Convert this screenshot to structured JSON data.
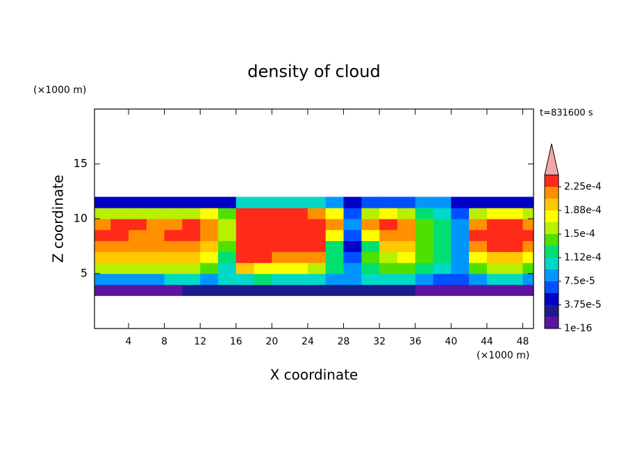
{
  "chart_data": {
    "type": "contour",
    "title": "density of cloud",
    "x_label": "X coordinate",
    "y_label": "Z coordinate",
    "x_unit": "(×1000 m)",
    "y_unit": "(×1000 m)",
    "annotation": "t=831600 s",
    "xlim": [
      0.2,
      49.2
    ],
    "ylim": [
      0,
      20
    ],
    "xticks": [
      4,
      8,
      12,
      16,
      20,
      24,
      28,
      32,
      36,
      40,
      44,
      48
    ],
    "yticks": [
      5,
      10,
      15
    ],
    "x": [
      1,
      3,
      5,
      7,
      9,
      11,
      13,
      15,
      17,
      19,
      21,
      23,
      25,
      27,
      29,
      31,
      33,
      35,
      37,
      39,
      41,
      43,
      45,
      47,
      49
    ],
    "y": [
      3.5,
      4.5,
      5.5,
      6.5,
      7.5,
      8.5,
      9.5,
      10.5,
      11.5
    ],
    "z": [
      [
        9.4e-06,
        9.4e-06,
        9.4e-06,
        9.4e-06,
        9.4e-06,
        2.8e-05,
        2.8e-05,
        2.8e-05,
        2.8e-05,
        2.8e-05,
        2.8e-05,
        2.8e-05,
        2.8e-05,
        2.8e-05,
        2.8e-05,
        2.8e-05,
        2.8e-05,
        2.8e-05,
        9.4e-06,
        9.4e-06,
        9.4e-06,
        9.4e-06,
        9.4e-06,
        9.4e-06,
        9.4e-06
      ],
      [
        8.4e-05,
        8.4e-05,
        8.4e-05,
        8.4e-05,
        0.000103,
        0.000103,
        8.4e-05,
        0.000103,
        0.000103,
        0.000122,
        0.000103,
        0.000103,
        0.000103,
        8.4e-05,
        8.4e-05,
        0.000103,
        0.000103,
        0.000103,
        8.4e-05,
        6.6e-05,
        6.6e-05,
        8.4e-05,
        0.000103,
        0.000103,
        8.4e-05
      ],
      [
        0.000159,
        0.000159,
        0.000159,
        0.000159,
        0.000159,
        0.000159,
        0.000141,
        0.000103,
        0.000197,
        0.000178,
        0.000178,
        0.000178,
        0.000159,
        0.000122,
        8.4e-05,
        0.000122,
        0.000141,
        0.000141,
        0.000122,
        0.000103,
        8.4e-05,
        0.000141,
        0.000159,
        0.000159,
        0.000141
      ],
      [
        0.000197,
        0.000197,
        0.000197,
        0.000197,
        0.000197,
        0.000197,
        0.000178,
        0.000122,
        0.000234,
        0.000234,
        0.000216,
        0.000216,
        0.000216,
        0.000122,
        6.6e-05,
        0.000141,
        0.000159,
        0.000178,
        0.000141,
        0.000122,
        8.4e-05,
        0.000178,
        0.000197,
        0.000197,
        0.000178
      ],
      [
        0.000216,
        0.000216,
        0.000216,
        0.000216,
        0.000216,
        0.000216,
        0.000197,
        0.000141,
        0.000234,
        0.000234,
        0.000234,
        0.000234,
        0.000234,
        0.000122,
        4.7e-05,
        0.000122,
        0.000197,
        0.000197,
        0.000141,
        0.000122,
        8.4e-05,
        0.000216,
        0.000234,
        0.000234,
        0.000216
      ],
      [
        0.000234,
        0.000234,
        0.000216,
        0.000216,
        0.000234,
        0.000234,
        0.000216,
        0.000159,
        0.000234,
        0.000234,
        0.000234,
        0.000234,
        0.000234,
        0.000178,
        6.6e-05,
        0.000178,
        0.000216,
        0.000216,
        0.000141,
        0.000122,
        8.4e-05,
        0.000234,
        0.000234,
        0.000234,
        0.000234
      ],
      [
        0.000216,
        0.000234,
        0.000234,
        0.000216,
        0.000216,
        0.000234,
        0.000216,
        0.000159,
        0.000234,
        0.000234,
        0.000234,
        0.000234,
        0.000234,
        0.000216,
        8.4e-05,
        0.000216,
        0.000234,
        0.000216,
        0.000141,
        0.000122,
        8.4e-05,
        0.000216,
        0.000234,
        0.000234,
        0.000216
      ],
      [
        0.000159,
        0.000159,
        0.000159,
        0.000159,
        0.000159,
        0.000159,
        0.000178,
        0.000141,
        0.000234,
        0.000234,
        0.000234,
        0.000234,
        0.000216,
        0.000178,
        6.6e-05,
        0.000159,
        0.000178,
        0.000159,
        0.000122,
        0.000103,
        6.6e-05,
        0.000159,
        0.000178,
        0.000178,
        0.000159
      ],
      [
        4.7e-05,
        4.7e-05,
        4.7e-05,
        4.7e-05,
        4.7e-05,
        4.7e-05,
        4.7e-05,
        4.7e-05,
        0.000103,
        0.000103,
        0.000103,
        0.000103,
        0.000103,
        8.4e-05,
        4.7e-05,
        6.6e-05,
        6.6e-05,
        6.6e-05,
        8.4e-05,
        8.4e-05,
        4.7e-05,
        4.7e-05,
        4.7e-05,
        4.7e-05,
        4.7e-05
      ]
    ],
    "colorbar": {
      "levels": [
        1e-16,
        1.875e-05,
        3.75e-05,
        5.625e-05,
        7.5e-05,
        9.375e-05,
        0.0001125,
        0.00013125,
        0.00015,
        0.00016875,
        0.0001875,
        0.00020625,
        0.000225,
        0.00024375
      ],
      "colors": [
        "#5c14a0",
        "#1c1c8c",
        "#0000c8",
        "#0050ff",
        "#0096ff",
        "#00d8c8",
        "#00e070",
        "#50e000",
        "#b8f000",
        "#ffff00",
        "#ffc800",
        "#ff9000",
        "#ff2a1a"
      ],
      "over_color": "#f4a6a6",
      "ticks": [
        {
          "value": 1e-16,
          "label": "1e-16"
        },
        {
          "value": 3.75e-05,
          "label": "3.75e-5"
        },
        {
          "value": 7.5e-05,
          "label": "7.5e-5"
        },
        {
          "value": 0.0001125,
          "label": "1.12e-4"
        },
        {
          "value": 0.00015,
          "label": "1.5e-4"
        },
        {
          "value": 0.0001875,
          "label": "1.88e-4"
        },
        {
          "value": 0.000225,
          "label": "2.25e-4"
        }
      ]
    }
  }
}
